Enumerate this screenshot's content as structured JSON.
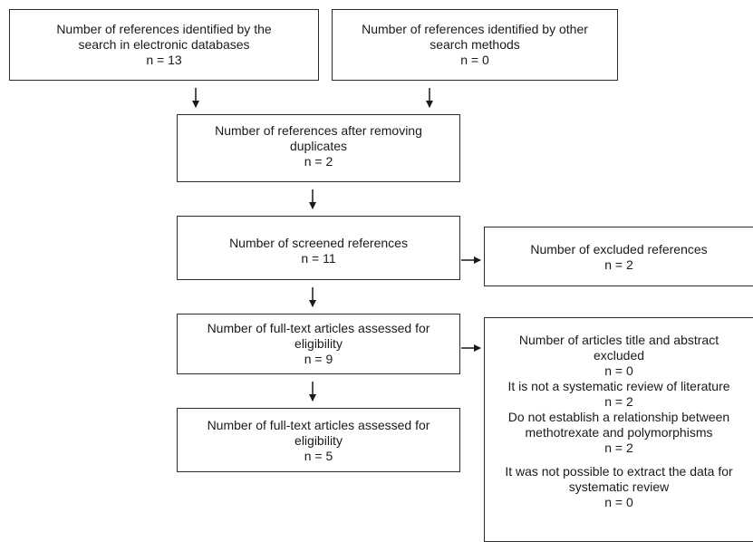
{
  "boxes": {
    "search_databases": {
      "lines": [
        "Number of references identified by the",
        "search in electronic databases",
        "n = 13"
      ]
    },
    "other_methods": {
      "lines": [
        "Number of references identified by other",
        "search methods",
        "n = 0"
      ]
    },
    "after_duplicates": {
      "lines": [
        "Number of references after removing",
        "duplicates",
        "n = 2"
      ]
    },
    "screened": {
      "lines": [
        "Number of screened references",
        "n = 11"
      ]
    },
    "excluded": {
      "lines": [
        "Number of excluded references",
        "n = 2"
      ]
    },
    "fulltext_assessed": {
      "lines": [
        "Number of full-text articles assessed for",
        "eligibility",
        "n = 9"
      ]
    },
    "fulltext_included": {
      "lines": [
        "Number of full-text articles assessed for",
        "eligibility",
        "n = 5"
      ]
    },
    "title_abstract_excluded": {
      "lines": [
        "Number of articles title and abstract",
        "excluded",
        "n = 0",
        "It is not a systematic review of literature",
        "n = 2",
        "Do not establish a relationship between",
        "methotrexate and polymorphisms",
        "n = 2",
        "It was not possible to extract the data for",
        "systematic review",
        "n = 0"
      ]
    }
  }
}
